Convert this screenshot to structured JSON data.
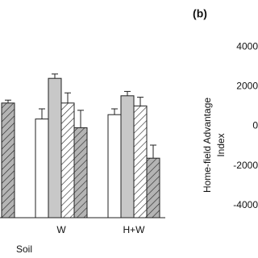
{
  "chart_data": [
    {
      "type": "bar",
      "categories": [
        null,
        "W",
        "H+W"
      ],
      "xlabel": "Soil",
      "ylim": [
        0,
        100
      ],
      "series": [
        {
          "color": "#ffffff",
          "hatch": false,
          "values": [
            null,
            68,
            71
          ],
          "errors": [
            null,
            7,
            4
          ]
        },
        {
          "color": "#c8c8c8",
          "hatch": false,
          "values": [
            null,
            96,
            84
          ],
          "errors": [
            null,
            3,
            3
          ]
        },
        {
          "color": "#ffffff",
          "hatch": true,
          "values": [
            null,
            79,
            77
          ],
          "errors": [
            null,
            7,
            6
          ]
        },
        {
          "color": "#b4b4b4",
          "hatch": true,
          "values": [
            79,
            62,
            41
          ],
          "errors": [
            2,
            12,
            9
          ]
        }
      ]
    },
    {
      "type": "bar",
      "panel_label": "(b)",
      "ylabel": [
        "Home-field Advantage",
        "Index"
      ],
      "ylim": [
        -5000,
        5000
      ],
      "yticks": [
        -4000,
        -2000,
        0,
        2000,
        4000
      ]
    }
  ]
}
